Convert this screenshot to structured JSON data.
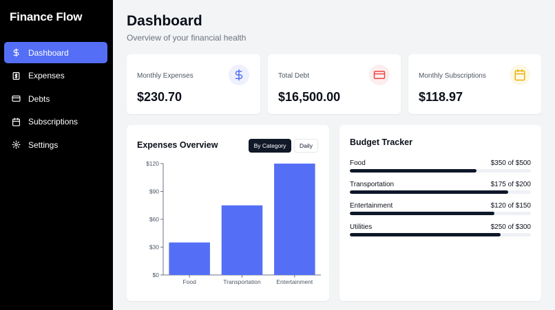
{
  "app": {
    "title": "Finance Flow"
  },
  "sidebar": {
    "items": [
      {
        "label": "Dashboard",
        "icon": "dollar-icon",
        "active": true
      },
      {
        "label": "Expenses",
        "icon": "receipt-icon",
        "active": false
      },
      {
        "label": "Debts",
        "icon": "credit-card-icon",
        "active": false
      },
      {
        "label": "Subscriptions",
        "icon": "calendar-icon",
        "active": false
      },
      {
        "label": "Settings",
        "icon": "gear-icon",
        "active": false
      }
    ]
  },
  "header": {
    "title": "Dashboard",
    "subtitle": "Overview of your financial health"
  },
  "stats": [
    {
      "label": "Monthly Expenses",
      "value": "$230.70",
      "icon": "dollar-icon",
      "icon_color": "#546ff5",
      "icon_bg": "#eef1fd"
    },
    {
      "label": "Total Debt",
      "value": "$16,500.00",
      "icon": "credit-card-icon",
      "icon_color": "#ef4444",
      "icon_bg": "#fdeeee"
    },
    {
      "label": "Monthly Subscriptions",
      "value": "$118.97",
      "icon": "calendar-icon",
      "icon_color": "#eab308",
      "icon_bg": "#fdf7e6"
    }
  ],
  "expenses_overview": {
    "title": "Expenses Overview",
    "toggle_category": "By Category",
    "toggle_daily": "Daily",
    "active_toggle": "category"
  },
  "chart_data": {
    "type": "bar",
    "categories": [
      "Food",
      "Transportation",
      "Entertainment"
    ],
    "values": [
      35,
      75,
      120
    ],
    "ylim": [
      0,
      120
    ],
    "yticks": [
      0,
      30,
      60,
      90,
      120
    ],
    "ytick_labels": [
      "$0",
      "$30",
      "$60",
      "$90",
      "$120"
    ],
    "color": "#546ff5",
    "grid": false
  },
  "budget_tracker": {
    "title": "Budget Tracker",
    "items": [
      {
        "name": "Food",
        "amount_label": "$350 of $500",
        "progress": 0.7
      },
      {
        "name": "Transportation",
        "amount_label": "$175 of $200",
        "progress": 0.875
      },
      {
        "name": "Entertainment",
        "amount_label": "$120 of $150",
        "progress": 0.8
      },
      {
        "name": "Utilities",
        "amount_label": "$250 of $300",
        "progress": 0.8333
      }
    ]
  }
}
